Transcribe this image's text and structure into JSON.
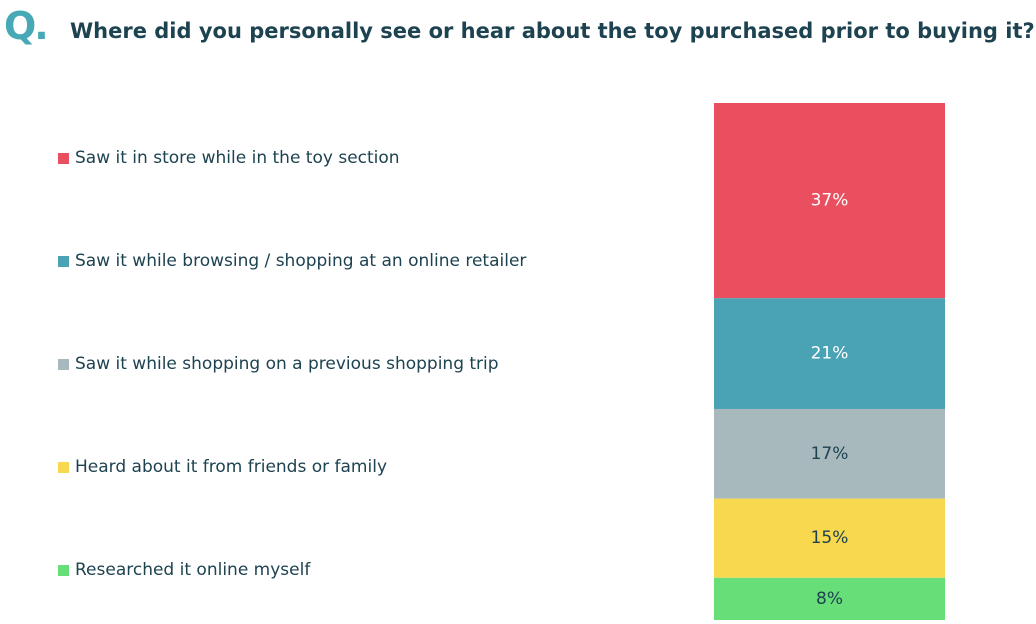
{
  "header": {
    "q_mark": "Q.",
    "question": "Where did you personally see or hear about the toy purchased prior to buying it?"
  },
  "chart_data": {
    "type": "bar",
    "stacked": true,
    "categories": [
      ""
    ],
    "series": [
      {
        "name": "Saw it in store while in the toy section",
        "values": [
          37
        ],
        "label": "37%",
        "color": "#e94f5f",
        "label_color": "#ffffff"
      },
      {
        "name": "Saw it while browsing / shopping at an online retailer",
        "values": [
          21
        ],
        "label": "21%",
        "color": "#4aa3b4",
        "label_color": "#ffffff"
      },
      {
        "name": "Saw it while shopping on a previous shopping trip",
        "values": [
          17
        ],
        "label": "17%",
        "color": "#a8b9bd",
        "label_color": "#1d4250"
      },
      {
        "name": "Heard about it from friends or family",
        "values": [
          15
        ],
        "label": "15%",
        "color": "#f7d84e",
        "label_color": "#1d4250"
      },
      {
        "name": "Researched it online myself",
        "values": [
          8
        ],
        "label": "8%",
        "color": "#67de77",
        "label_color": "#1d4250"
      }
    ],
    "legend_position": "left",
    "grid": false
  }
}
